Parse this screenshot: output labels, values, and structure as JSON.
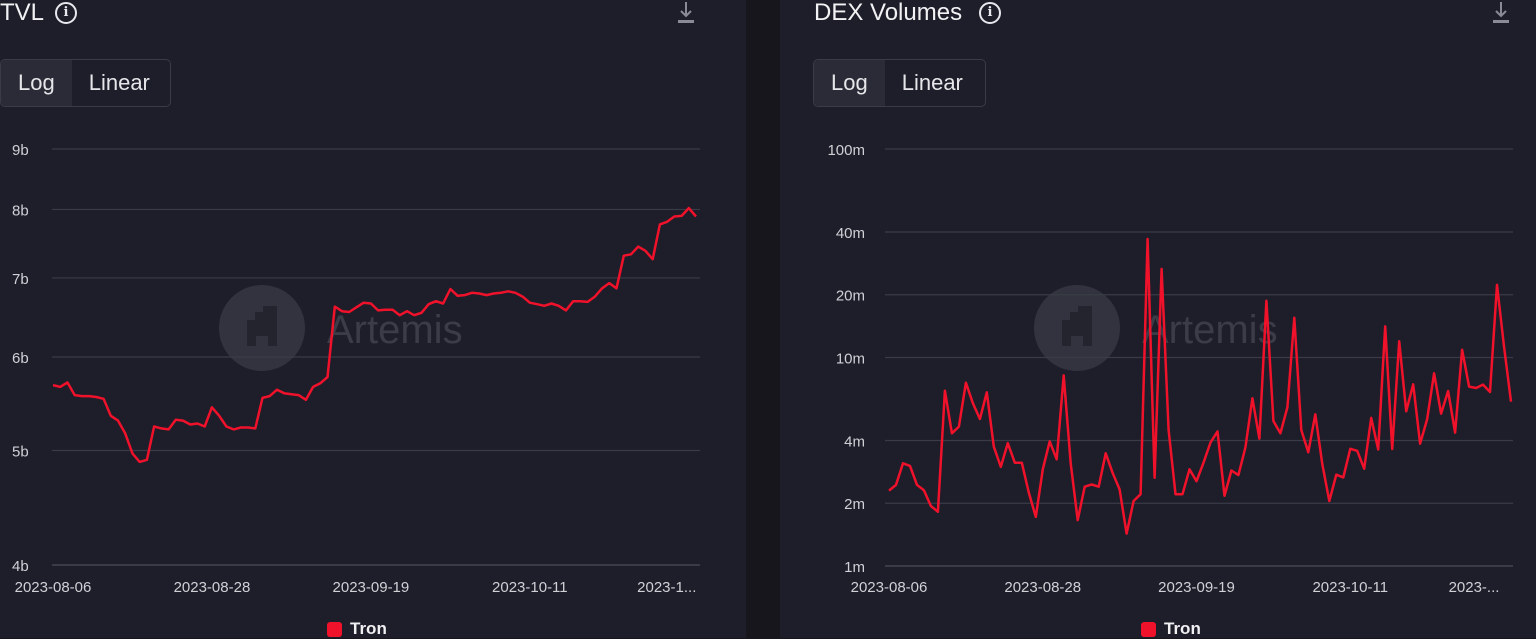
{
  "colors": {
    "series": "#f0112b",
    "grid": "#3a3b46",
    "panel_bg": "#1d1e29",
    "page_bg": "#16161c",
    "watermark": "#3b3c47"
  },
  "watermark": "Artemis",
  "chart_data": [
    {
      "type": "line",
      "title": "TVL",
      "info_icon": "info-icon",
      "download_icon": "download-icon",
      "scale_toggle": {
        "options": [
          "Log",
          "Linear"
        ],
        "selected": "Log"
      },
      "yscale": "log",
      "ylim": [
        4,
        9
      ],
      "yticks": [
        {
          "v": 9,
          "label": "9b"
        },
        {
          "v": 8,
          "label": "8b"
        },
        {
          "v": 7,
          "label": "7b"
        },
        {
          "v": 6,
          "label": "6b"
        },
        {
          "v": 5,
          "label": "5b"
        },
        {
          "v": 4,
          "label": "4b"
        }
      ],
      "y_unit": "billions",
      "x_range": [
        "2023-08-06",
        "2023-11-03"
      ],
      "x_frequency": "daily",
      "xticks": [
        {
          "date": "2023-08-06",
          "label": "2023-08-06"
        },
        {
          "date": "2023-08-28",
          "label": "2023-08-28"
        },
        {
          "date": "2023-09-19",
          "label": "2023-09-19"
        },
        {
          "date": "2023-10-11",
          "label": "2023-10-11"
        },
        {
          "date": "2023-11-02",
          "label": "2023-1..."
        }
      ],
      "grid": true,
      "legend": "bottom",
      "series": [
        {
          "name": "Tron",
          "values": [
            5.68,
            5.66,
            5.71,
            5.57,
            5.56,
            5.56,
            5.55,
            5.53,
            5.35,
            5.3,
            5.17,
            4.97,
            4.89,
            4.91,
            5.24,
            5.22,
            5.21,
            5.31,
            5.3,
            5.26,
            5.27,
            5.24,
            5.44,
            5.35,
            5.24,
            5.21,
            5.23,
            5.23,
            5.22,
            5.54,
            5.56,
            5.63,
            5.59,
            5.58,
            5.57,
            5.52,
            5.66,
            5.7,
            5.77,
            6.62,
            6.56,
            6.55,
            6.61,
            6.67,
            6.66,
            6.57,
            6.58,
            6.58,
            6.51,
            6.56,
            6.51,
            6.54,
            6.65,
            6.69,
            6.66,
            6.85,
            6.76,
            6.77,
            6.8,
            6.79,
            6.77,
            6.79,
            6.8,
            6.82,
            6.8,
            6.75,
            6.67,
            6.65,
            6.63,
            6.66,
            6.63,
            6.57,
            6.69,
            6.69,
            6.68,
            6.75,
            6.86,
            6.93,
            6.86,
            7.31,
            7.33,
            7.44,
            7.38,
            7.26,
            7.77,
            7.81,
            7.89,
            7.9,
            8.02,
            7.89
          ]
        }
      ]
    },
    {
      "type": "line",
      "title": "DEX Volumes",
      "info_icon": "info-icon",
      "download_icon": "download-icon",
      "scale_toggle": {
        "options": [
          "Log",
          "Linear"
        ],
        "selected": "Log"
      },
      "yscale": "log",
      "ylim": [
        1,
        100
      ],
      "yticks": [
        {
          "v": 100,
          "label": "100m"
        },
        {
          "v": 40,
          "label": "40m"
        },
        {
          "v": 20,
          "label": "20m"
        },
        {
          "v": 10,
          "label": "10m"
        },
        {
          "v": 4,
          "label": "4m"
        },
        {
          "v": 2,
          "label": "2m"
        },
        {
          "v": 1,
          "label": "1m"
        }
      ],
      "y_unit": "millions",
      "x_range": [
        "2023-08-06",
        "2023-11-03"
      ],
      "x_frequency": "daily",
      "xticks": [
        {
          "date": "2023-08-06",
          "label": "2023-08-06"
        },
        {
          "date": "2023-08-28",
          "label": "2023-08-28"
        },
        {
          "date": "2023-09-19",
          "label": "2023-09-19"
        },
        {
          "date": "2023-10-11",
          "label": "2023-10-11"
        },
        {
          "date": "2023-11-02",
          "label": "2023-..."
        }
      ],
      "grid": true,
      "legend": "bottom",
      "series": [
        {
          "name": "Tron",
          "values": [
            2.3,
            2.45,
            3.11,
            3.02,
            2.45,
            2.31,
            1.94,
            1.82,
            6.93,
            4.33,
            4.66,
            7.57,
            6.03,
            5.07,
            6.81,
            3.74,
            2.99,
            3.88,
            3.13,
            3.13,
            2.25,
            1.72,
            2.91,
            3.96,
            3.25,
            8.21,
            3.11,
            1.66,
            2.4,
            2.46,
            2.4,
            3.47,
            2.8,
            2.33,
            1.43,
            2.05,
            2.21,
            37.0,
            2.65,
            26.6,
            4.49,
            2.21,
            2.21,
            2.91,
            2.55,
            3.13,
            3.91,
            4.42,
            2.17,
            2.87,
            2.73,
            3.7,
            6.37,
            4.08,
            18.7,
            4.96,
            4.33,
            5.77,
            15.5,
            4.49,
            3.51,
            5.34,
            3.08,
            2.05,
            2.74,
            2.66,
            3.65,
            3.57,
            2.93,
            5.13,
            3.62,
            14.1,
            3.64,
            11.96,
            5.52,
            7.44,
            3.86,
            5.05,
            8.4,
            5.38,
            6.91,
            4.36,
            10.9,
            7.25,
            7.14,
            7.41,
            6.83,
            22.3,
            11.3,
            6.14
          ]
        }
      ]
    }
  ]
}
